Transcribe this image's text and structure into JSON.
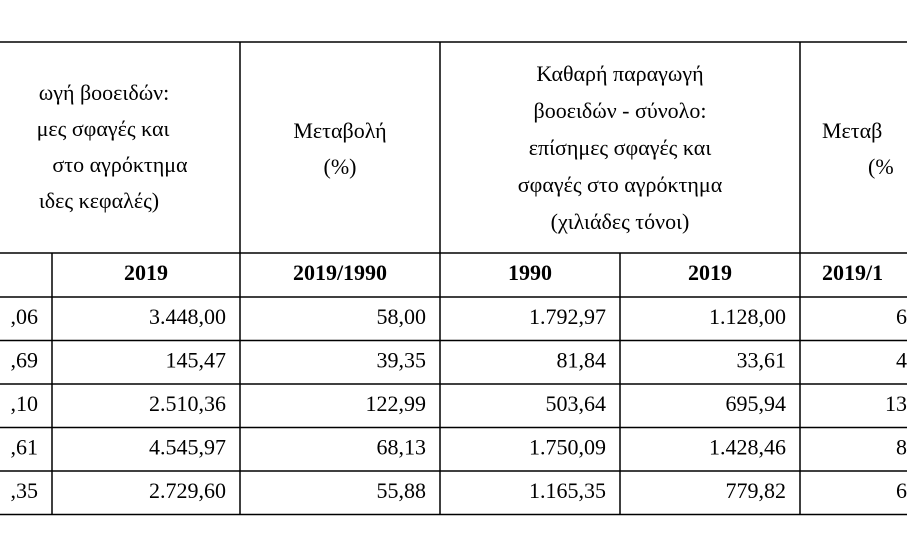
{
  "table": {
    "header": {
      "col1": [
        "ωγή βοοειδών:",
        "μες σφαγές και",
        "στο αγρόκτημα",
        "ιδες κεφαλές)"
      ],
      "col2": [
        "Μεταβολή",
        "(%)"
      ],
      "col3": [
        "Καθαρή παραγωγή",
        "βοοειδών - σύνολο:",
        "επίσημες σφαγές και",
        "σφαγές στο αγρόκτημα",
        "(χιλιάδες τόνοι)"
      ],
      "col4": [
        "Μεταβ",
        "(%"
      ]
    },
    "subheader": [
      "2019",
      "2019/1990",
      "1990",
      "2019",
      "2019/1"
    ],
    "rows": [
      [
        ",06",
        "3.448,00",
        "58,00",
        "1.792,97",
        "1.128,00",
        "6"
      ],
      [
        ",69",
        "145,47",
        "39,35",
        "81,84",
        "33,61",
        "4"
      ],
      [
        ",10",
        "2.510,36",
        "122,99",
        "503,64",
        "695,94",
        "13"
      ],
      [
        ",61",
        "4.545,97",
        "68,13",
        "1.750,09",
        "1.428,46",
        "8"
      ],
      [
        ",35",
        "2.729,60",
        "55,88",
        "1.165,35",
        "779,82",
        "6"
      ]
    ]
  }
}
